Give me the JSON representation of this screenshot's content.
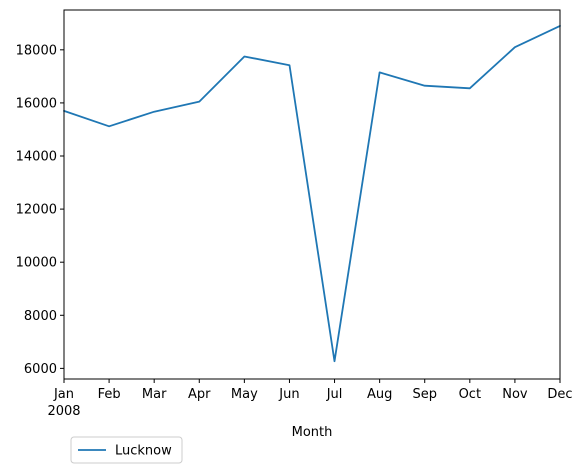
{
  "chart_data": {
    "type": "line",
    "x": [
      "Jan",
      "Feb",
      "Mar",
      "Apr",
      "May",
      "Jun",
      "Jul",
      "Aug",
      "Sep",
      "Oct",
      "Nov",
      "Dec"
    ],
    "x_sublabel": "2008",
    "series": [
      {
        "name": "Lucknow",
        "color": "#1f77b4",
        "values": [
          15700,
          15120,
          15670,
          16050,
          17750,
          17420,
          6270,
          17150,
          16650,
          16550,
          18100,
          18900
        ]
      }
    ],
    "title": "",
    "xlabel": "Month",
    "ylabel": "",
    "ylim": [
      5600,
      19500
    ],
    "yticks": [
      6000,
      8000,
      10000,
      12000,
      14000,
      16000,
      18000
    ],
    "grid": false,
    "legend_position": "bottom-left"
  }
}
